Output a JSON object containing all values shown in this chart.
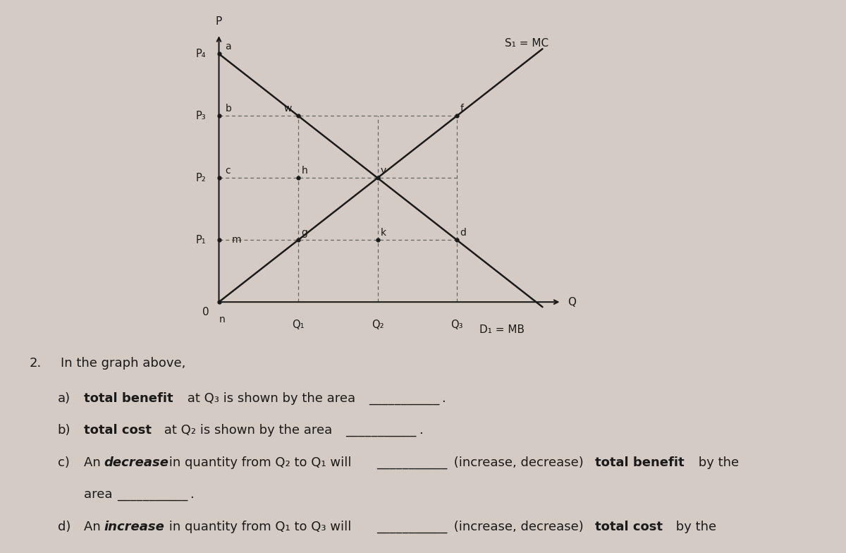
{
  "bg_color": "#d4ccc4",
  "line_color": "#1a1a1a",
  "dashed_color": "#666666",
  "dot_color": "#1a1a1a",
  "text_color": "#1a1a1a",
  "supply_label": "S₁ = MC",
  "demand_label": "D₁ = MB",
  "x_axis_label": "Q",
  "y_axis_label": "P",
  "price_labels": [
    "P₄",
    "P₃",
    "P₂",
    "P₁"
  ],
  "qty_labels": [
    "Q₁",
    "Q₂",
    "Q₃"
  ],
  "font_size_graph": 11,
  "font_size_q": 13
}
